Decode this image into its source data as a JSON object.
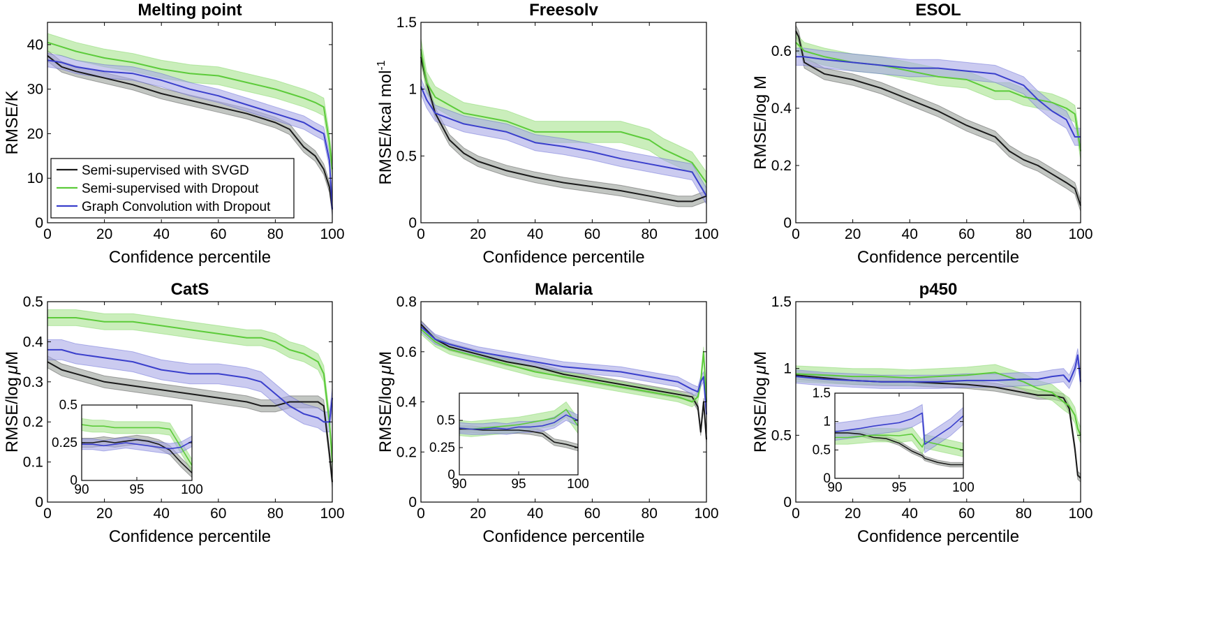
{
  "colors": {
    "svgd": "#1a1a1a",
    "dropout": "#5ccb3a",
    "graph": "#3a3fcc",
    "svgd_band": "#9aa09a",
    "dropout_band": "#a6e28e",
    "graph_band": "#a8a8e6"
  },
  "legend": {
    "items": [
      {
        "label": "Semi-supervised with SVGD",
        "color_key": "svgd"
      },
      {
        "label": "Semi-supervised with Dropout",
        "color_key": "dropout"
      },
      {
        "label": "Graph Convolution with Dropout",
        "color_key": "graph"
      }
    ],
    "placement": "lower-left of Melting point panel"
  },
  "chart_data": [
    {
      "type": "line",
      "title": "Melting point",
      "xlabel": "Confidence percentile",
      "ylabel": "RMSE/K",
      "xlim": [
        0,
        100
      ],
      "ylim": [
        0,
        45
      ],
      "xticks": [
        "0",
        "20",
        "40",
        "60",
        "80",
        "100"
      ],
      "yticks": [
        "0",
        "10",
        "20",
        "30",
        "40"
      ],
      "x": [
        0,
        5,
        10,
        20,
        30,
        40,
        50,
        60,
        70,
        80,
        85,
        90,
        94,
        97,
        99,
        100
      ],
      "series": [
        {
          "name": "Semi-supervised with SVGD",
          "values": [
            37.5,
            35,
            34,
            32.5,
            31,
            29,
            27.5,
            26,
            24.5,
            22.5,
            21,
            17,
            15,
            12,
            8,
            3
          ],
          "band": 1.2
        },
        {
          "name": "Semi-supervised with Dropout",
          "values": [
            40.5,
            39.5,
            38.5,
            37,
            36,
            34.5,
            33.5,
            33,
            31.5,
            30,
            29,
            28,
            27,
            26,
            18,
            12
          ],
          "band": 2.0
        },
        {
          "name": "Graph Convolution with Dropout",
          "values": [
            36.5,
            36,
            35,
            34,
            33.5,
            32,
            30,
            28.5,
            26.5,
            24.5,
            23.5,
            22.5,
            21,
            20,
            14,
            3
          ],
          "band": 1.5
        }
      ]
    },
    {
      "type": "line",
      "title": "Freesolv",
      "xlabel": "Confidence percentile",
      "ylabel": "RMSE/kcal mol",
      "ylabel_sup": "-1",
      "xlim": [
        0,
        100
      ],
      "ylim": [
        0,
        1.5
      ],
      "xticks": [
        "0",
        "20",
        "40",
        "60",
        "80",
        "100"
      ],
      "yticks": [
        "0",
        "0.5",
        "1",
        "1.5"
      ],
      "x": [
        0,
        2,
        5,
        10,
        15,
        20,
        30,
        40,
        50,
        60,
        70,
        80,
        85,
        90,
        95,
        100
      ],
      "series": [
        {
          "name": "Semi-supervised with SVGD",
          "values": [
            1.24,
            1.05,
            0.82,
            0.62,
            0.52,
            0.46,
            0.39,
            0.34,
            0.3,
            0.27,
            0.24,
            0.2,
            0.18,
            0.16,
            0.16,
            0.2
          ],
          "band": 0.04
        },
        {
          "name": "Semi-supervised with Dropout",
          "values": [
            1.3,
            1.05,
            0.94,
            0.88,
            0.82,
            0.8,
            0.76,
            0.68,
            0.68,
            0.68,
            0.68,
            0.62,
            0.55,
            0.5,
            0.45,
            0.3
          ],
          "band": 0.08
        },
        {
          "name": "Graph Convolution with Dropout",
          "values": [
            1.02,
            0.92,
            0.82,
            0.78,
            0.74,
            0.72,
            0.68,
            0.6,
            0.57,
            0.53,
            0.48,
            0.44,
            0.42,
            0.4,
            0.38,
            0.2
          ],
          "band": 0.06
        }
      ]
    },
    {
      "type": "line",
      "title": "ESOL",
      "xlabel": "Confidence percentile",
      "ylabel": "RMSE/log M",
      "xlim": [
        0,
        100
      ],
      "ylim": [
        0,
        0.7
      ],
      "xticks": [
        "0",
        "20",
        "40",
        "60",
        "80",
        "100"
      ],
      "yticks": [
        "0",
        "0.2",
        "0.4",
        "0.6"
      ],
      "x": [
        0,
        1,
        3,
        10,
        20,
        30,
        40,
        50,
        60,
        70,
        75,
        80,
        85,
        90,
        95,
        98,
        100
      ],
      "series": [
        {
          "name": "Semi-supervised with SVGD",
          "values": [
            0.67,
            0.65,
            0.56,
            0.52,
            0.5,
            0.47,
            0.43,
            0.39,
            0.34,
            0.3,
            0.25,
            0.22,
            0.2,
            0.17,
            0.14,
            0.12,
            0.06
          ],
          "band": 0.02
        },
        {
          "name": "Semi-supervised with Dropout",
          "values": [
            0.63,
            0.62,
            0.6,
            0.58,
            0.56,
            0.55,
            0.53,
            0.51,
            0.5,
            0.46,
            0.46,
            0.44,
            0.43,
            0.42,
            0.4,
            0.38,
            0.25
          ],
          "band": 0.03
        },
        {
          "name": "Graph Convolution with Dropout",
          "values": [
            0.58,
            0.58,
            0.58,
            0.57,
            0.56,
            0.55,
            0.54,
            0.54,
            0.53,
            0.52,
            0.5,
            0.48,
            0.43,
            0.39,
            0.36,
            0.3,
            0.3
          ],
          "band": 0.03
        }
      ]
    },
    {
      "type": "line",
      "title": "CatS",
      "xlabel": "Confidence percentile",
      "ylabel": "RMSE/log",
      "ylabel_unit": "μM",
      "xlim": [
        0,
        100
      ],
      "ylim": [
        0,
        0.5
      ],
      "xticks": [
        "0",
        "20",
        "40",
        "60",
        "80",
        "100"
      ],
      "yticks": [
        "0",
        "0.1",
        "0.2",
        "0.3",
        "0.4",
        "0.5"
      ],
      "x": [
        0,
        5,
        10,
        20,
        30,
        40,
        50,
        60,
        70,
        75,
        80,
        85,
        90,
        95,
        97,
        99,
        100
      ],
      "series": [
        {
          "name": "Semi-supervised with SVGD",
          "values": [
            0.35,
            0.33,
            0.32,
            0.3,
            0.29,
            0.28,
            0.27,
            0.26,
            0.25,
            0.24,
            0.24,
            0.25,
            0.25,
            0.25,
            0.24,
            0.12,
            0.05
          ],
          "band": 0.015
        },
        {
          "name": "Semi-supervised with Dropout",
          "values": [
            0.46,
            0.46,
            0.46,
            0.45,
            0.45,
            0.44,
            0.43,
            0.42,
            0.41,
            0.41,
            0.4,
            0.38,
            0.37,
            0.35,
            0.32,
            0.2,
            0.1
          ],
          "band": 0.02
        },
        {
          "name": "Graph Convolution with Dropout",
          "values": [
            0.38,
            0.38,
            0.37,
            0.36,
            0.35,
            0.33,
            0.32,
            0.32,
            0.31,
            0.3,
            0.27,
            0.24,
            0.22,
            0.21,
            0.2,
            0.2,
            0.26
          ],
          "band": 0.025
        }
      ],
      "inset": {
        "xlim": [
          90,
          100
        ],
        "ylim": [
          0,
          0.5
        ],
        "xticks": [
          "90",
          "95",
          "100"
        ],
        "yticks": [
          "0",
          "0.25",
          "0.5"
        ],
        "x": [
          90,
          91,
          92,
          93,
          94,
          95,
          96,
          97,
          98,
          99,
          100
        ],
        "series": [
          {
            "name": "Semi-supervised with SVGD",
            "values": [
              0.25,
              0.25,
              0.26,
              0.25,
              0.26,
              0.27,
              0.26,
              0.24,
              0.2,
              0.12,
              0.05
            ],
            "band": 0.03
          },
          {
            "name": "Semi-supervised with Dropout",
            "values": [
              0.37,
              0.36,
              0.36,
              0.35,
              0.35,
              0.35,
              0.35,
              0.35,
              0.34,
              0.22,
              0.1
            ],
            "band": 0.04
          },
          {
            "name": "Graph Convolution with Dropout",
            "values": [
              0.24,
              0.24,
              0.23,
              0.24,
              0.25,
              0.24,
              0.23,
              0.22,
              0.21,
              0.22,
              0.26
            ],
            "band": 0.035
          }
        ]
      }
    },
    {
      "type": "line",
      "title": "Malaria",
      "xlabel": "Confidence percentile",
      "ylabel": "RMSE/log",
      "ylabel_unit": "μM",
      "xlim": [
        0,
        100
      ],
      "ylim": [
        0,
        0.8
      ],
      "xticks": [
        "0",
        "20",
        "40",
        "60",
        "80",
        "100"
      ],
      "yticks": [
        "0",
        "0.2",
        "0.4",
        "0.6",
        "0.8"
      ],
      "x": [
        0,
        5,
        10,
        20,
        30,
        40,
        50,
        60,
        70,
        80,
        90,
        95,
        97,
        98,
        99,
        100
      ],
      "series": [
        {
          "name": "Semi-supervised with SVGD",
          "values": [
            0.71,
            0.65,
            0.62,
            0.59,
            0.56,
            0.54,
            0.51,
            0.49,
            0.47,
            0.45,
            0.43,
            0.42,
            0.38,
            0.28,
            0.4,
            0.25
          ],
          "band": 0.015
        },
        {
          "name": "Semi-supervised with Dropout",
          "values": [
            0.69,
            0.64,
            0.61,
            0.58,
            0.55,
            0.52,
            0.5,
            0.48,
            0.46,
            0.44,
            0.42,
            0.4,
            0.42,
            0.48,
            0.6,
            0.4
          ],
          "band": 0.02
        },
        {
          "name": "Graph Convolution with Dropout",
          "values": [
            0.7,
            0.65,
            0.63,
            0.6,
            0.58,
            0.56,
            0.54,
            0.53,
            0.52,
            0.5,
            0.48,
            0.45,
            0.44,
            0.48,
            0.5,
            0.35
          ],
          "band": 0.02
        }
      ],
      "inset": {
        "xlim": [
          90,
          100
        ],
        "ylim": [
          0,
          0.75
        ],
        "xticks": [
          "90",
          "95",
          "100"
        ],
        "yticks": [
          "0",
          "0.25",
          "0.5"
        ],
        "x": [
          90,
          91,
          92,
          93,
          94,
          95,
          96,
          97,
          98,
          99,
          100
        ],
        "series": [
          {
            "name": "Semi-supervised with SVGD",
            "values": [
              0.42,
              0.42,
              0.41,
              0.41,
              0.41,
              0.41,
              0.4,
              0.38,
              0.3,
              0.28,
              0.25
            ],
            "band": 0.03
          },
          {
            "name": "Semi-supervised with Dropout",
            "values": [
              0.43,
              0.42,
              0.43,
              0.44,
              0.45,
              0.46,
              0.48,
              0.5,
              0.52,
              0.6,
              0.45
            ],
            "band": 0.07
          },
          {
            "name": "Graph Convolution with Dropout",
            "values": [
              0.43,
              0.42,
              0.42,
              0.43,
              0.42,
              0.44,
              0.44,
              0.45,
              0.48,
              0.55,
              0.5
            ],
            "band": 0.05
          }
        ]
      }
    },
    {
      "type": "line",
      "title": "p450",
      "xlabel": "Confidence percentile",
      "ylabel": "RMSE/log",
      "ylabel_unit": "μM",
      "xlim": [
        0,
        100
      ],
      "ylim": [
        0,
        1.5
      ],
      "xticks": [
        "0",
        "20",
        "40",
        "60",
        "80",
        "100"
      ],
      "yticks": [
        "0",
        "0.5",
        "1",
        "1.5"
      ],
      "x": [
        0,
        10,
        20,
        30,
        40,
        50,
        60,
        70,
        80,
        85,
        90,
        94,
        96,
        98,
        99,
        100
      ],
      "series": [
        {
          "name": "Semi-supervised with SVGD",
          "values": [
            0.95,
            0.93,
            0.91,
            0.9,
            0.9,
            0.89,
            0.88,
            0.86,
            0.82,
            0.8,
            0.8,
            0.78,
            0.7,
            0.4,
            0.2,
            0.18
          ],
          "band": 0.03
        },
        {
          "name": "Semi-supervised with Dropout",
          "values": [
            0.96,
            0.95,
            0.94,
            0.94,
            0.93,
            0.94,
            0.95,
            0.97,
            0.9,
            0.85,
            0.82,
            0.75,
            0.72,
            0.65,
            0.55,
            0.5
          ],
          "band": 0.06
        },
        {
          "name": "Graph Convolution with Dropout",
          "values": [
            0.94,
            0.92,
            0.91,
            0.9,
            0.9,
            0.9,
            0.91,
            0.91,
            0.92,
            0.92,
            0.94,
            0.95,
            0.9,
            1.0,
            1.1,
            0.9
          ],
          "band": 0.05
        }
      ],
      "inset": {
        "xlim": [
          90,
          100
        ],
        "ylim": [
          0,
          1.5
        ],
        "xticks": [
          "90",
          "95",
          "100"
        ],
        "yticks": [
          "0",
          "0.5",
          "1",
          "1.5"
        ],
        "x": [
          90,
          91,
          92,
          93,
          94,
          95,
          96,
          96.8,
          97,
          98,
          99,
          100
        ],
        "series": [
          {
            "name": "Semi-supervised with SVGD",
            "values": [
              0.8,
              0.8,
              0.78,
              0.72,
              0.7,
              0.62,
              0.48,
              0.4,
              0.35,
              0.28,
              0.24,
              0.24
            ],
            "band": 0.04
          },
          {
            "name": "Semi-supervised with Dropout",
            "values": [
              0.72,
              0.72,
              0.74,
              0.76,
              0.76,
              0.75,
              0.78,
              0.55,
              0.65,
              0.6,
              0.55,
              0.5
            ],
            "band": 0.12
          },
          {
            "name": "Graph Convolution with Dropout",
            "values": [
              0.82,
              0.85,
              0.88,
              0.92,
              0.95,
              0.98,
              1.05,
              1.15,
              0.6,
              0.75,
              0.9,
              1.1
            ],
            "band": 0.15
          }
        ]
      }
    }
  ]
}
